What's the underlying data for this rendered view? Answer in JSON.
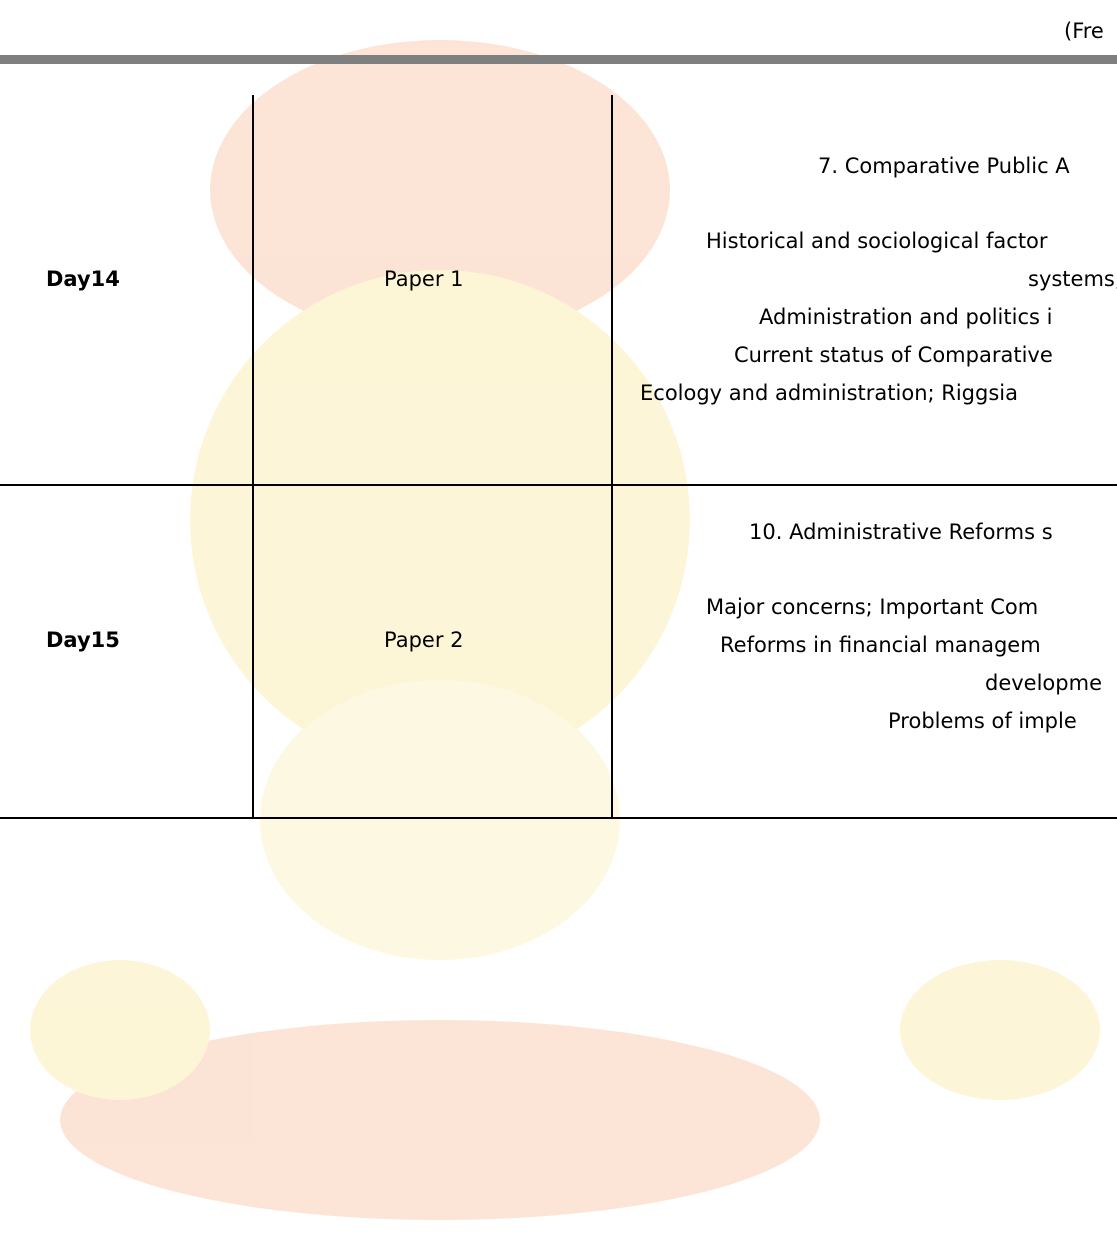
{
  "header": {
    "text": "(Fre"
  },
  "table": {
    "rows": [
      {
        "day": "Day14",
        "paper": "Paper 1",
        "topic_lines": [
          "7. Comparative Public A",
          "Historical and sociological factor",
          "systems;",
          "Administration and politics i",
          "Current status of Comparative",
          "Ecology and administration; Riggsia"
        ]
      },
      {
        "day": "Day15",
        "paper": "Paper 2",
        "topic_lines": [
          "10. Administrative Reforms s",
          "Major concerns; Important Com",
          "Reforms in financial managem",
          "developme",
          "Problems of imple"
        ]
      }
    ]
  }
}
